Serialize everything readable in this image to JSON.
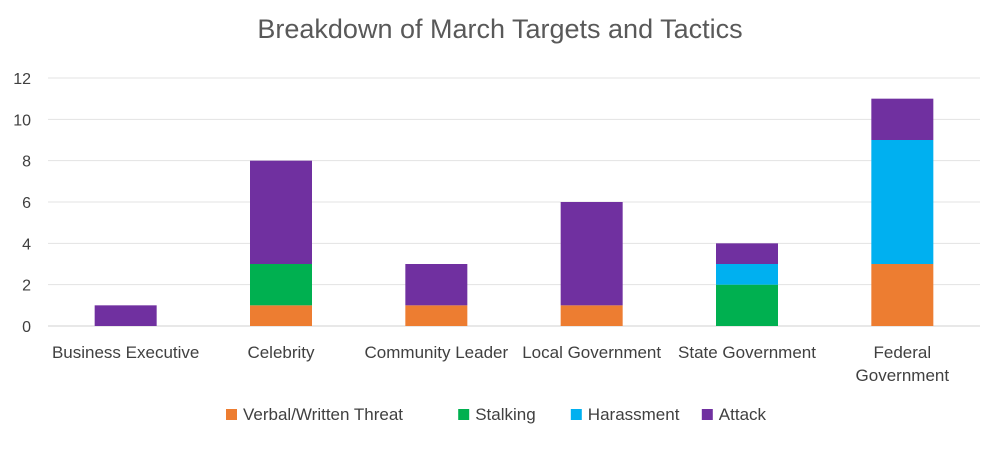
{
  "chart_data": {
    "type": "bar",
    "stacked": true,
    "title": "Breakdown of March Targets and Tactics",
    "categories": [
      "Business Executive",
      "Celebrity",
      "Community Leader",
      "Local Government",
      "State Government",
      "Federal Government"
    ],
    "category_lines": [
      [
        "Business Executive"
      ],
      [
        "Celebrity"
      ],
      [
        "Community Leader"
      ],
      [
        "Local Government"
      ],
      [
        "State Government"
      ],
      [
        "Federal",
        "Government"
      ]
    ],
    "series": [
      {
        "name": "Verbal/Written Threat",
        "color": "#ED7D31",
        "values": [
          0,
          1,
          1,
          1,
          0,
          3
        ]
      },
      {
        "name": "Stalking",
        "color": "#00B050",
        "values": [
          0,
          2,
          0,
          0,
          2,
          0
        ]
      },
      {
        "name": "Harassment",
        "color": "#00B0F0",
        "values": [
          0,
          0,
          0,
          0,
          1,
          6
        ]
      },
      {
        "name": "Attack",
        "color": "#7030A0",
        "values": [
          1,
          5,
          2,
          5,
          1,
          2
        ]
      }
    ],
    "ylim": [
      0,
      12
    ],
    "yticks": [
      "0",
      "2",
      "4",
      "6",
      "8",
      "10",
      "12"
    ],
    "grid": true,
    "legend_position": "bottom",
    "xlabel": "",
    "ylabel": ""
  }
}
